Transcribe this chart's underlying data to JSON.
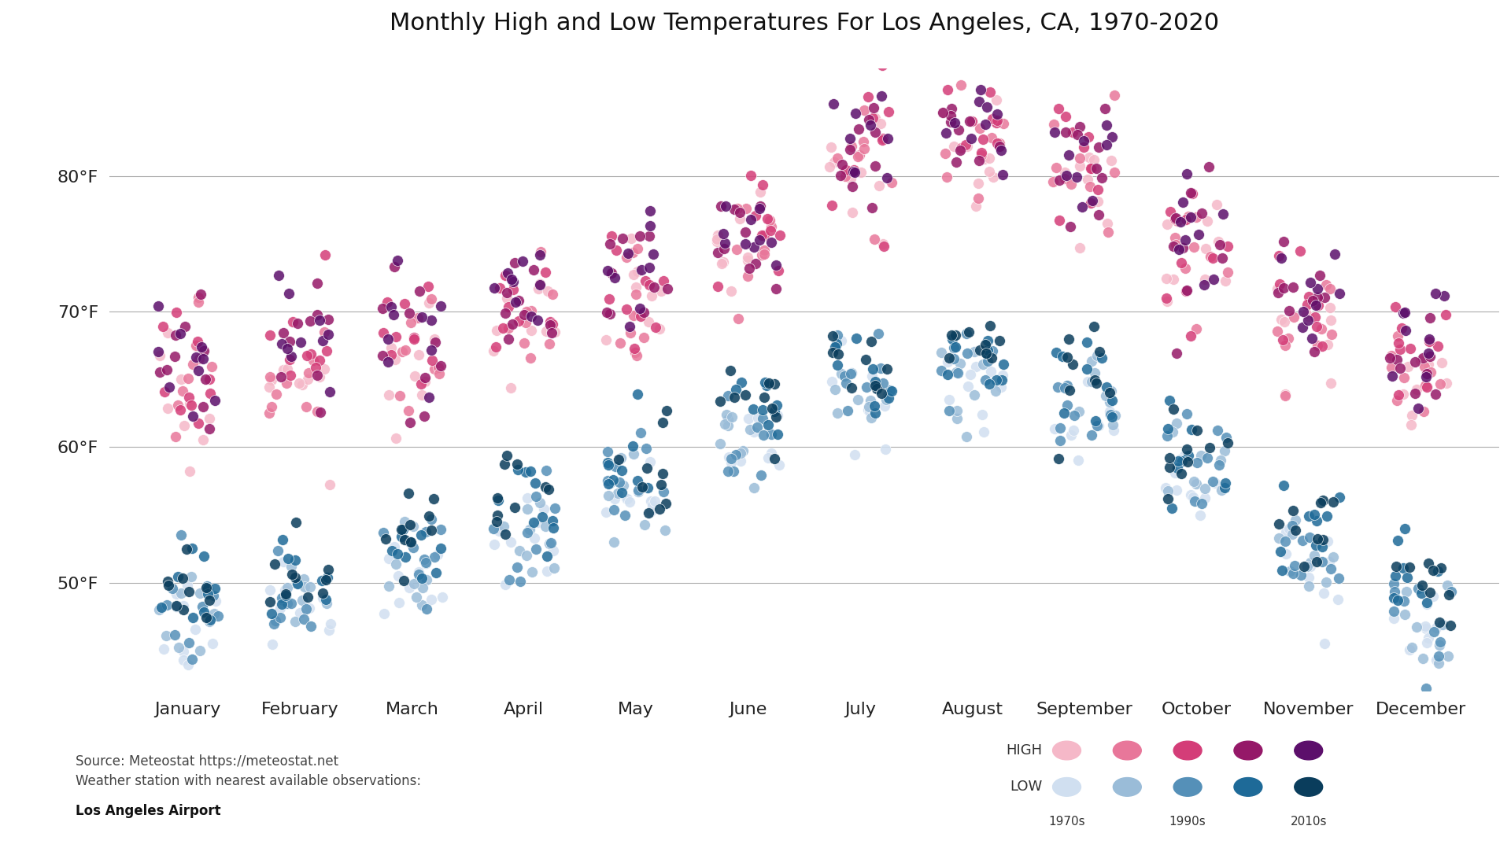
{
  "title": "Monthly High and Low Temperatures For Los Angeles, CA, 1970-2020",
  "months": [
    "January",
    "February",
    "March",
    "April",
    "May",
    "June",
    "July",
    "August",
    "September",
    "October",
    "November",
    "December"
  ],
  "yticks": [
    50,
    60,
    70,
    80
  ],
  "ylim": [
    42,
    88
  ],
  "background_color": "#ffffff",
  "high_colors": [
    "#f5b8c8",
    "#e8779a",
    "#d43d78",
    "#951868",
    "#5c0f6b"
  ],
  "low_colors": [
    "#d0dff0",
    "#9abcd8",
    "#5590b8",
    "#1e6a98",
    "#0a3d5c"
  ],
  "high_means": [
    65.5,
    66.5,
    67.5,
    70.0,
    72.0,
    75.5,
    81.5,
    83.0,
    80.5,
    75.0,
    69.5,
    65.5
  ],
  "low_means": [
    48.0,
    49.5,
    51.5,
    54.0,
    57.5,
    61.5,
    64.5,
    65.5,
    63.5,
    58.5,
    52.0,
    48.0
  ],
  "decade_offsets": [
    -1.2,
    -0.4,
    0.3,
    0.9,
    1.5
  ],
  "high_std": 2.5,
  "low_std": 2.0,
  "n_per_decade": 10,
  "marker_size": 100,
  "jitter_range": 0.28,
  "alpha": 0.85
}
